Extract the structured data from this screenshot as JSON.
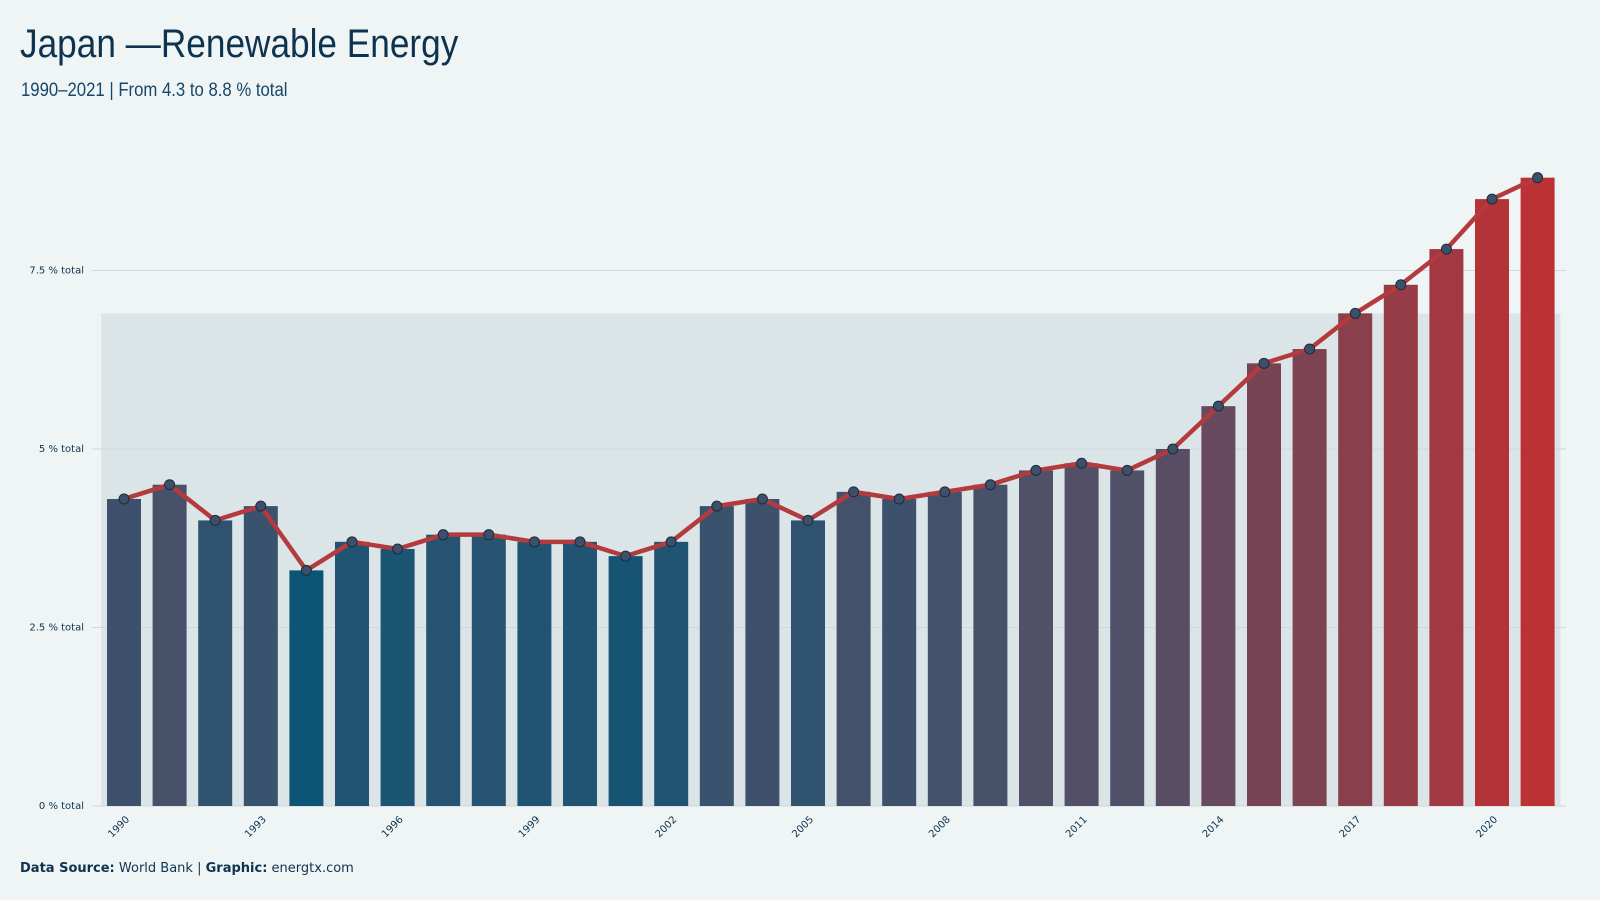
{
  "header": {
    "title": "Japan —Renewable Energy",
    "subtitle": "1990–2021 | From 4.3 to 8.8 % total"
  },
  "footer": {
    "source_label": "Data Source:",
    "source_value": "World Bank",
    "separator": "|",
    "graphic_label": "Graphic:",
    "graphic_value": "energtx.com"
  },
  "colors": {
    "background": "#eff5f5",
    "band": "#dbe5e8",
    "line": "#b33a3d",
    "marker": "#3c5069",
    "low_bar": "#0d5576",
    "mid_bar": "#4f5069",
    "high_bar": "#bc3134",
    "grid": "#cfd8dc"
  },
  "chart_data": {
    "type": "bar",
    "overlay": "line",
    "x": [
      1990,
      1991,
      1992,
      1993,
      1994,
      1995,
      1996,
      1997,
      1998,
      1999,
      2000,
      2001,
      2002,
      2003,
      2004,
      2005,
      2006,
      2007,
      2008,
      2009,
      2010,
      2011,
      2012,
      2013,
      2014,
      2015,
      2016,
      2017,
      2018,
      2019,
      2020,
      2021
    ],
    "values": [
      4.3,
      4.5,
      4.0,
      4.2,
      3.3,
      3.7,
      3.6,
      3.8,
      3.8,
      3.7,
      3.7,
      3.5,
      3.7,
      4.2,
      4.3,
      4.0,
      4.4,
      4.3,
      4.4,
      4.5,
      4.7,
      4.8,
      4.7,
      5.0,
      5.6,
      6.2,
      6.4,
      6.9,
      7.3,
      7.8,
      8.5,
      8.8
    ],
    "x_tick_labels": [
      "1990",
      "1993",
      "1996",
      "1999",
      "2002",
      "2005",
      "2008",
      "2011",
      "2014",
      "2017",
      "2020"
    ],
    "y_ticks": [
      0,
      2.5,
      5,
      7.5
    ],
    "y_tick_labels": [
      "0 % total",
      "2.5 % total",
      "5 % total",
      "7.5 % total"
    ],
    "ylim": [
      0,
      9
    ],
    "xlabel": "",
    "ylabel": "",
    "grid": true
  }
}
